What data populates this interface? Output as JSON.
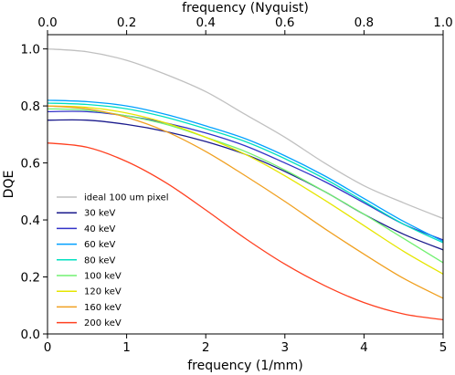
{
  "chart_data": {
    "type": "line",
    "xlabel": "frequency (1/mm)",
    "ylabel": "DQE",
    "top_xlabel": "frequency (Nyquist)",
    "xlim": [
      0,
      5
    ],
    "ylim": [
      0.0,
      1.05
    ],
    "top_xlim": [
      0,
      1.0
    ],
    "x_ticks": [
      0,
      1,
      2,
      3,
      4,
      5
    ],
    "x_tick_labels": [
      "0",
      "1",
      "2",
      "3",
      "4",
      "5"
    ],
    "y_ticks": [
      0.0,
      0.2,
      0.4,
      0.6,
      0.8,
      1.0
    ],
    "y_tick_labels": [
      "0.0",
      "0.2",
      "0.4",
      "0.6",
      "0.8",
      "1.0"
    ],
    "top_ticks": [
      0,
      0.2,
      0.4,
      0.6,
      0.8,
      1.0
    ],
    "top_tick_labels": [
      "0.0",
      "0.2",
      "0.4",
      "0.6",
      "0.8",
      "1.0"
    ],
    "grid": false,
    "legend_position": "lower-left",
    "x": [
      0,
      0.5,
      1,
      1.5,
      2,
      2.5,
      3,
      3.5,
      4,
      4.5,
      5
    ],
    "series": [
      {
        "name": "ideal 100 um pixel",
        "color": "#c0c0c0",
        "values": [
          1.0,
          0.99,
          0.96,
          0.91,
          0.85,
          0.77,
          0.69,
          0.6,
          0.52,
          0.46,
          0.405
        ]
      },
      {
        "name": "30 keV",
        "color": "#1a1a8c",
        "values": [
          0.75,
          0.75,
          0.735,
          0.71,
          0.675,
          0.63,
          0.57,
          0.5,
          0.42,
          0.35,
          0.295
        ]
      },
      {
        "name": "40 keV",
        "color": "#3232c8",
        "values": [
          0.78,
          0.78,
          0.765,
          0.74,
          0.705,
          0.66,
          0.6,
          0.535,
          0.46,
          0.385,
          0.33
        ]
      },
      {
        "name": "60 keV",
        "color": "#00a0ff",
        "values": [
          0.82,
          0.815,
          0.8,
          0.77,
          0.73,
          0.685,
          0.625,
          0.555,
          0.475,
          0.395,
          0.325
        ]
      },
      {
        "name": "80 keV",
        "color": "#00e0c0",
        "values": [
          0.81,
          0.805,
          0.79,
          0.76,
          0.72,
          0.675,
          0.615,
          0.545,
          0.465,
          0.385,
          0.32
        ]
      },
      {
        "name": "100 keV",
        "color": "#70f070",
        "values": [
          0.79,
          0.785,
          0.765,
          0.735,
          0.69,
          0.64,
          0.575,
          0.5,
          0.42,
          0.335,
          0.25
        ]
      },
      {
        "name": "120 keV",
        "color": "#e6e600",
        "values": [
          0.8,
          0.795,
          0.775,
          0.74,
          0.69,
          0.63,
          0.555,
          0.47,
          0.38,
          0.29,
          0.21
        ]
      },
      {
        "name": "160 keV",
        "color": "#f0a020",
        "values": [
          0.8,
          0.79,
          0.76,
          0.71,
          0.64,
          0.555,
          0.465,
          0.37,
          0.28,
          0.195,
          0.125
        ]
      },
      {
        "name": "200 keV",
        "color": "#ff4020",
        "values": [
          0.67,
          0.655,
          0.605,
          0.53,
          0.435,
          0.335,
          0.245,
          0.17,
          0.11,
          0.07,
          0.05
        ]
      }
    ]
  }
}
